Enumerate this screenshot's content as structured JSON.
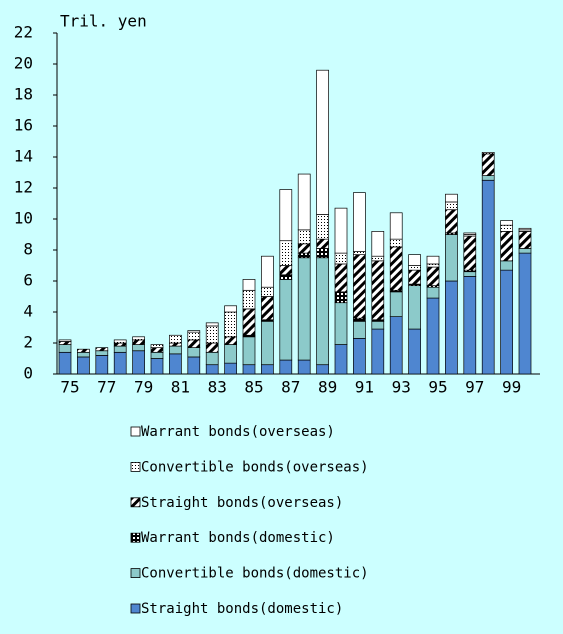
{
  "chart_data": {
    "type": "stacked_bar",
    "y_label": "Tril. yen",
    "categories": [
      "75",
      null,
      "77",
      null,
      "79",
      null,
      "81",
      null,
      "83",
      null,
      "85",
      null,
      "87",
      null,
      "89",
      null,
      "91",
      null,
      "93",
      null,
      "95",
      null,
      "97",
      null,
      "99",
      null
    ],
    "ylim": [
      0,
      22
    ],
    "yticks": [
      0,
      2,
      4,
      6,
      8,
      10,
      12,
      14,
      16,
      18,
      20,
      22
    ],
    "series": [
      {
        "name": "Straight bonds(domestic)",
        "color": "#4f86d0",
        "values": [
          1.4,
          1.1,
          1.2,
          1.4,
          1.5,
          1.0,
          1.3,
          1.1,
          0.6,
          0.7,
          0.6,
          0.6,
          0.9,
          0.9,
          0.6,
          1.9,
          2.3,
          2.9,
          3.7,
          2.9,
          4.9,
          6.0,
          6.3,
          12.5,
          6.7,
          7.8
        ]
      },
      {
        "name": "Convertible bonds(domestic)",
        "color": "#8ccaca",
        "values": [
          0.5,
          0.3,
          0.3,
          0.4,
          0.4,
          0.4,
          0.5,
          0.6,
          0.8,
          1.2,
          1.8,
          2.8,
          5.2,
          6.6,
          6.9,
          2.7,
          1.1,
          0.5,
          1.6,
          2.8,
          0.7,
          3.0,
          0.3,
          0.3,
          0.6,
          0.3
        ]
      },
      {
        "name": "Warrant bonds(domestic)",
        "color": "#000000",
        "values": [
          0,
          0,
          0,
          0,
          0,
          0,
          0,
          0,
          0,
          0,
          0.1,
          0.1,
          0.3,
          0.3,
          0.6,
          0.7,
          0.2,
          0.1,
          0.1,
          0.1,
          0.1,
          0.1,
          0.1,
          0,
          0,
          0
        ]
      },
      {
        "name": "Straight bonds(overseas)",
        "color": "#000000",
        "values": [
          0.2,
          0.2,
          0.2,
          0.2,
          0.3,
          0.3,
          0.2,
          0.5,
          0.6,
          0.5,
          1.7,
          1.5,
          0.6,
          0.6,
          0.6,
          1.8,
          4.1,
          3.8,
          2.8,
          0.9,
          1.2,
          1.5,
          2.2,
          1.4,
          1.9,
          1.1
        ]
      },
      {
        "name": "Convertible bonds(overseas)",
        "color": "#000000",
        "values": [
          0.1,
          0,
          0,
          0.2,
          0.2,
          0.2,
          0.5,
          0.5,
          1.1,
          1.6,
          1.2,
          0.6,
          1.6,
          0.9,
          1.6,
          0.7,
          0.2,
          0.3,
          0.5,
          0.3,
          0.2,
          0.5,
          0.1,
          0.1,
          0.4,
          0.1
        ]
      },
      {
        "name": "Warrant bonds(overseas)",
        "color": "#ffffff",
        "values": [
          0,
          0,
          0,
          0,
          0,
          0,
          0,
          0.1,
          0.2,
          0.4,
          0.7,
          2.0,
          3.3,
          3.6,
          9.3,
          2.9,
          3.8,
          1.6,
          1.7,
          0.7,
          0.5,
          0.5,
          0.1,
          0,
          0.3,
          0.1
        ]
      }
    ]
  }
}
